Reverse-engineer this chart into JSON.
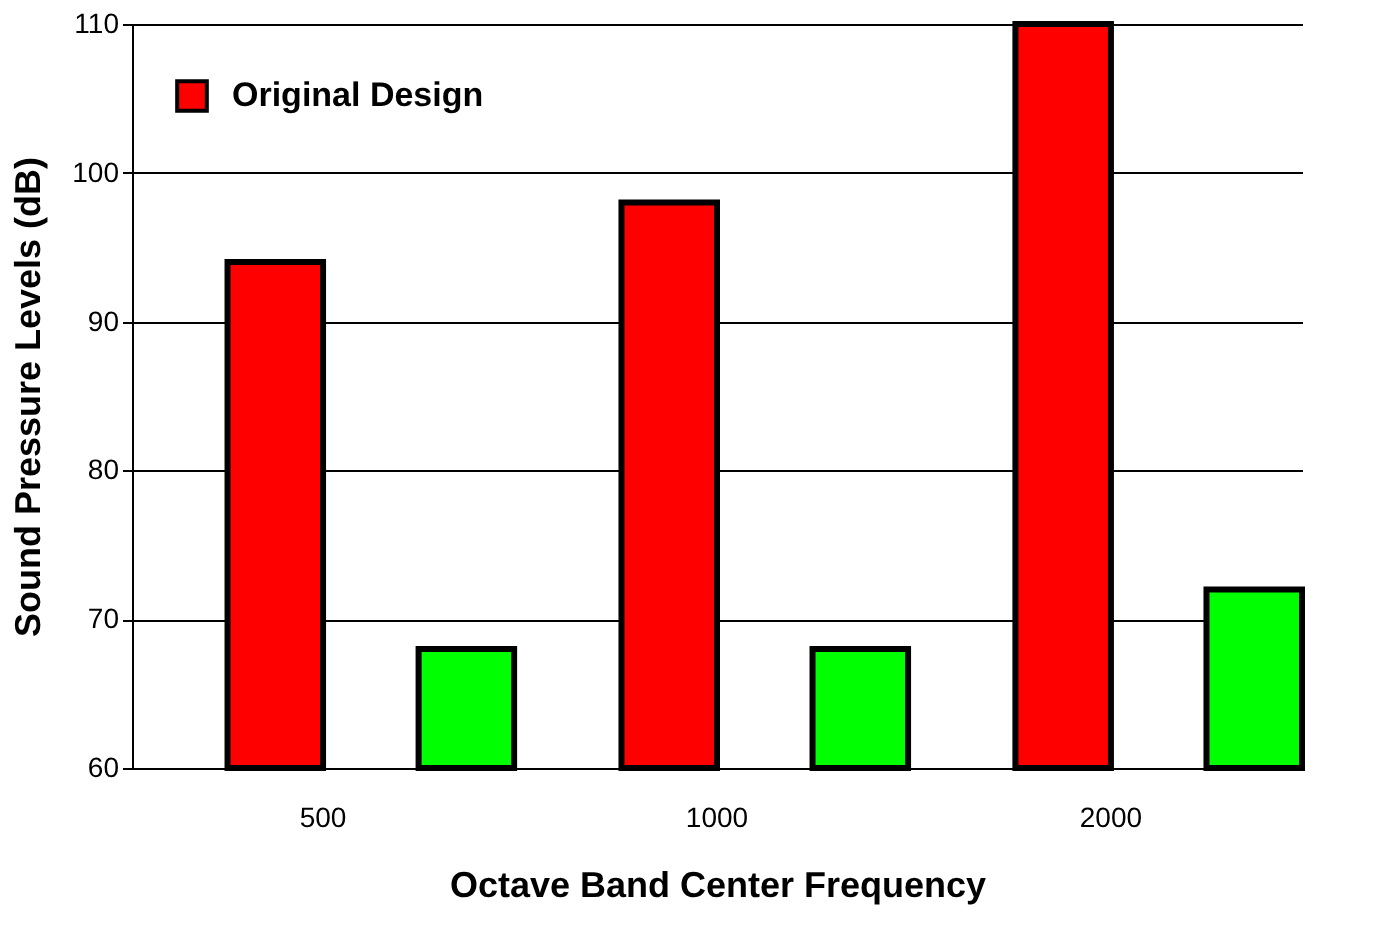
{
  "chart_data": {
    "type": "bar",
    "xlabel": "Octave Band Center Frequency",
    "ylabel": "Sound Pressure Levels (dB)",
    "categories": [
      "500",
      "1000",
      "2000"
    ],
    "series": [
      {
        "name": "Original Design",
        "color": "#ff0000",
        "values": [
          94,
          98,
          110
        ]
      },
      {
        "color": "#00ff00",
        "values": [
          68,
          68,
          72
        ]
      }
    ],
    "ylim": [
      60,
      110
    ],
    "yticks": [
      60,
      70,
      80,
      90,
      100,
      110
    ],
    "grid": "y",
    "legend": "top left"
  }
}
